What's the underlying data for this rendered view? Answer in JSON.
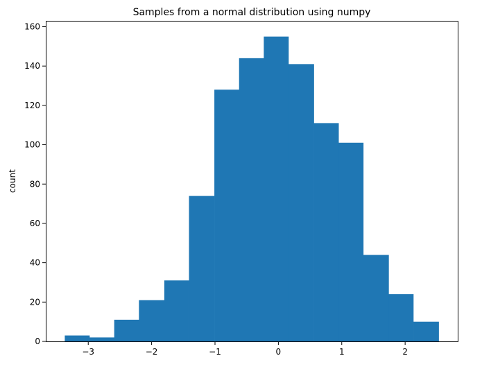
{
  "chart_data": {
    "type": "bar",
    "title": "Samples from a normal distribution using numpy",
    "xlabel": "",
    "ylabel": "count",
    "bin_edges": [
      -3.37,
      -2.98,
      -2.59,
      -2.2,
      -1.8,
      -1.41,
      -1.01,
      -0.62,
      -0.23,
      0.16,
      0.56,
      0.95,
      1.34,
      1.74,
      2.13,
      2.53
    ],
    "values": [
      3,
      2,
      11,
      21,
      31,
      74,
      128,
      144,
      155,
      141,
      111,
      101,
      44,
      24,
      10
    ],
    "xlim": [
      -3.67,
      2.83
    ],
    "ylim": [
      0,
      163
    ],
    "x_ticks": [
      -3,
      -2,
      -1,
      0,
      1,
      2
    ],
    "x_tick_labels": [
      "−3",
      "−2",
      "−1",
      "0",
      "1",
      "2"
    ],
    "y_ticks": [
      0,
      20,
      40,
      60,
      80,
      100,
      120,
      140,
      160
    ],
    "y_tick_labels": [
      "0",
      "20",
      "40",
      "60",
      "80",
      "100",
      "120",
      "140",
      "160"
    ],
    "bar_color": "#1f77b4",
    "grid": false
  }
}
